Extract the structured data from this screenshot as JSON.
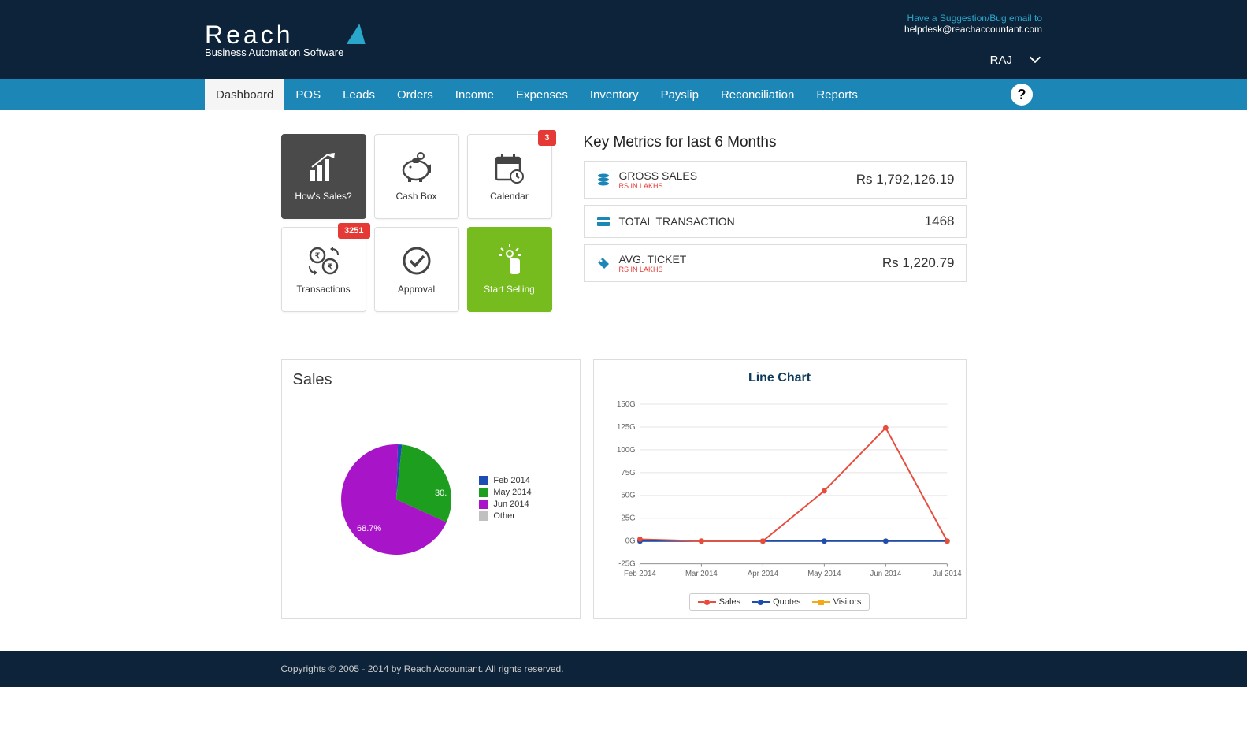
{
  "header": {
    "logo_main": "Reach",
    "logo_sub": "Business Automation Software",
    "suggestion_text": "Have a Suggestion/Bug email to",
    "helpdesk_email": "helpdesk@reachaccountant.com",
    "user_name": "RAJ"
  },
  "nav": {
    "items": [
      "Dashboard",
      "POS",
      "Leads",
      "Orders",
      "Income",
      "Expenses",
      "Inventory",
      "Payslip",
      "Reconciliation",
      "Reports"
    ],
    "active_index": 0,
    "help_glyph": "?"
  },
  "tiles": [
    {
      "label": "How's Sales?",
      "variant": "dark",
      "badge": null,
      "icon": "chart-icon"
    },
    {
      "label": "Cash Box",
      "variant": "light",
      "badge": null,
      "icon": "piggy-icon"
    },
    {
      "label": "Calendar",
      "variant": "light",
      "badge": "3",
      "icon": "calendar-icon"
    },
    {
      "label": "Transactions",
      "variant": "light",
      "badge": "3251",
      "icon": "transactions-icon"
    },
    {
      "label": "Approval",
      "variant": "light",
      "badge": null,
      "icon": "approval-icon"
    },
    {
      "label": "Start Selling",
      "variant": "green",
      "badge": null,
      "icon": "pointer-icon"
    }
  ],
  "metrics": {
    "title": "Key Metrics for last 6 Months",
    "rows": [
      {
        "icon": "database-icon",
        "label": "GROSS SALES",
        "sub": "RS IN LAKHS",
        "value": "Rs 1,792,126.19"
      },
      {
        "icon": "card-icon",
        "label": "TOTAL TRANSACTION",
        "sub": "",
        "value": "1468"
      },
      {
        "icon": "tag-icon",
        "label": "AVG. TICKET",
        "sub": "RS IN LAKHS",
        "value": "Rs 1,220.79"
      }
    ]
  },
  "pie_chart": {
    "title": "Sales",
    "type": "pie",
    "slices": [
      {
        "label": "Feb 2014",
        "value": 1.2,
        "color": "#1c4db3"
      },
      {
        "label": "May 2014",
        "value": 30.1,
        "color": "#1e9e1e"
      },
      {
        "label": "Jun 2014",
        "value": 68.7,
        "color": "#a815c8"
      },
      {
        "label": "Other",
        "value": 0.0,
        "color": "#c0c0c0"
      }
    ],
    "label_30": "30.",
    "label_687": "68.7%",
    "background_color": "#ffffff",
    "legend_fontsize": 11
  },
  "line_chart": {
    "title": "Line Chart",
    "type": "line",
    "x_labels": [
      "Feb 2014",
      "Mar 2014",
      "Apr 2014",
      "May 2014",
      "Jun 2014",
      "Jul 2014"
    ],
    "y_ticks": [
      -25,
      0,
      25,
      50,
      75,
      100,
      125,
      150
    ],
    "y_suffix": "G",
    "ylim": [
      -25,
      150
    ],
    "series": [
      {
        "name": "Sales",
        "color": "#e84c3d",
        "marker": "circle",
        "values": [
          2,
          0,
          0,
          55,
          124,
          0
        ]
      },
      {
        "name": "Quotes",
        "color": "#1c4db3",
        "marker": "circle",
        "values": [
          0,
          0,
          0,
          0,
          0,
          0
        ]
      },
      {
        "name": "Visitors",
        "color": "#f4a81b",
        "marker": "square",
        "values": [
          0,
          0,
          0,
          0,
          0,
          0
        ]
      }
    ],
    "grid_color": "#e5e5e5",
    "axis_color": "#888888",
    "background_color": "#ffffff"
  },
  "footer": {
    "copyright": "Copyrights © 2005 - 2014 by Reach Accountant. All rights reserved."
  },
  "colors": {
    "header_bg": "#0d2339",
    "nav_bg": "#1c86b7",
    "badge_bg": "#e53935",
    "tile_green": "#77bc1f",
    "tile_dark": "#4a4a4a"
  }
}
